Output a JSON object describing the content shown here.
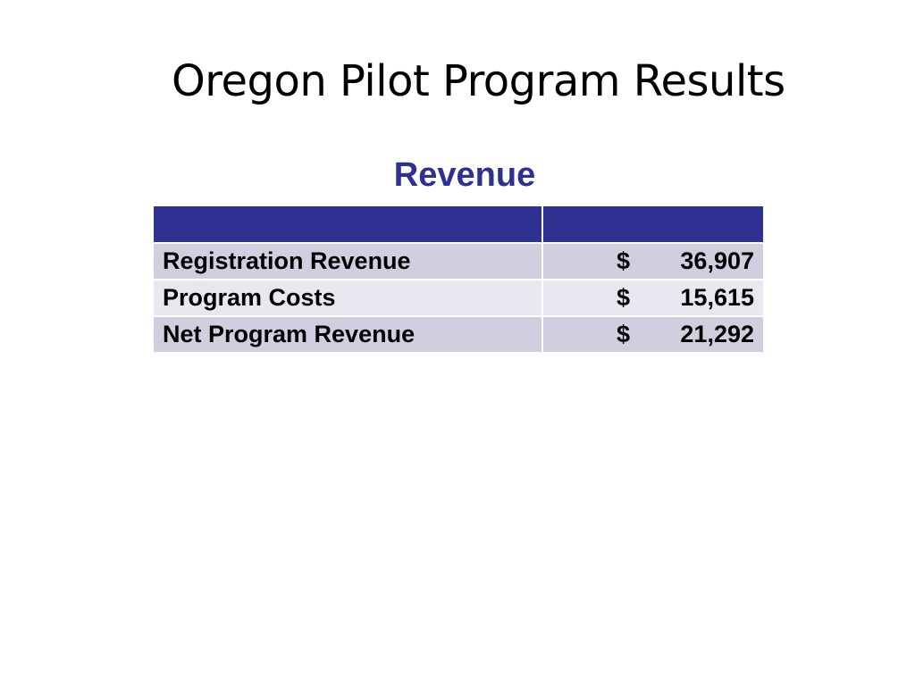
{
  "slide": {
    "title": "Oregon Pilot Program Results",
    "heading": "Revenue"
  },
  "colors": {
    "accent": "#2e3192",
    "row_dark": "#cfcfdf",
    "row_light": "#e8e8f0"
  },
  "table": {
    "header": [
      "",
      ""
    ],
    "rows": [
      {
        "label": "Registration Revenue",
        "currency": "$",
        "amount": "36,907"
      },
      {
        "label": "Program Costs",
        "currency": "$",
        "amount": "15,615"
      },
      {
        "label": "Net Program Revenue",
        "currency": "$",
        "amount": "21,292"
      }
    ]
  }
}
